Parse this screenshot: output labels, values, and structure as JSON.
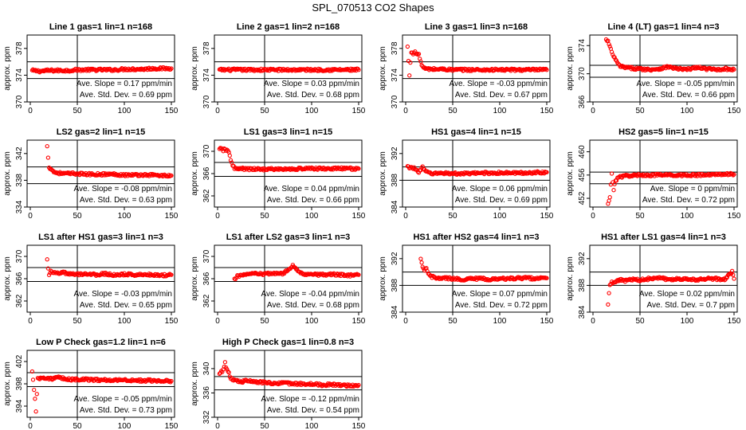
{
  "figure": {
    "title": "SPL_070513  CO2 Shapes"
  },
  "chart_data": [
    {
      "type": "scatter",
      "title": "Line 1 gas=1 lin=1 n=168",
      "ylabel": "approx. ppm",
      "xlim": [
        0,
        150
      ],
      "ylim": [
        370,
        380
      ],
      "xticks": [
        0,
        50,
        100,
        150
      ],
      "yticks": [
        370,
        374,
        378
      ],
      "vline": 50,
      "hlines": [
        373.5,
        376
      ],
      "stats": {
        "slope": "Ave. Slope =  0.17  ppm/min",
        "sd": "Ave. Std. Dev. =  0.69  ppm"
      },
      "series": [
        {
          "x": [
            2,
            10,
            20,
            30,
            40,
            50,
            60,
            70,
            80,
            90,
            100,
            110,
            120,
            130,
            140,
            150
          ],
          "y": [
            374.7,
            374.6,
            374.7,
            374.7,
            374.7,
            374.8,
            374.8,
            374.8,
            374.8,
            374.8,
            374.9,
            374.9,
            374.9,
            375.0,
            375.0,
            375.0
          ]
        }
      ]
    },
    {
      "type": "scatter",
      "title": "Line 2 gas=1 lin=2 n=168",
      "ylabel": "approx. ppm",
      "xlim": [
        0,
        150
      ],
      "ylim": [
        370,
        380
      ],
      "xticks": [
        0,
        50,
        100,
        150
      ],
      "yticks": [
        370,
        374,
        378
      ],
      "vline": 50,
      "hlines": [
        373.5,
        376
      ],
      "stats": {
        "slope": "Ave. Slope =  0.03  ppm/min",
        "sd": "Ave. Std. Dev. =  0.68  ppm"
      },
      "series": [
        {
          "x": [
            2,
            10,
            20,
            30,
            40,
            50,
            60,
            70,
            80,
            90,
            100,
            110,
            120,
            130,
            140,
            150
          ],
          "y": [
            374.8,
            374.8,
            374.8,
            374.8,
            374.8,
            374.8,
            374.8,
            374.8,
            374.8,
            374.8,
            374.8,
            374.8,
            374.8,
            374.8,
            374.8,
            374.8
          ]
        }
      ]
    },
    {
      "type": "scatter",
      "title": "Line 3 gas=1 lin=3 n=168",
      "ylabel": "approx. ppm",
      "xlim": [
        0,
        150
      ],
      "ylim": [
        370,
        380
      ],
      "xticks": [
        0,
        50,
        100,
        150
      ],
      "yticks": [
        370,
        374,
        378
      ],
      "vline": 50,
      "hlines": [
        373.5,
        376
      ],
      "stats": {
        "slope": "Ave. Slope =  -0.03  ppm/min",
        "sd": "Ave. Std. Dev. =  0.67  ppm"
      },
      "series": [
        {
          "x": [
            2,
            4,
            6,
            8,
            10,
            12,
            14,
            16,
            18,
            20,
            25,
            30,
            40,
            50,
            60,
            70,
            80,
            90,
            100,
            110,
            120,
            130,
            140,
            150
          ],
          "y": [
            378.2,
            374.0,
            377.5,
            377.3,
            377.4,
            377.2,
            377.0,
            376.0,
            375.3,
            375.0,
            374.9,
            374.9,
            374.9,
            374.8,
            374.8,
            374.8,
            374.8,
            374.8,
            374.8,
            374.8,
            374.8,
            374.8,
            374.8,
            374.8
          ]
        }
      ]
    },
    {
      "type": "scatter",
      "title": "Line 4 (LT) gas=1 lin=4 n=3",
      "ylabel": "approx. ppm",
      "xlim": [
        0,
        150
      ],
      "ylim": [
        366,
        375.5
      ],
      "xticks": [
        0,
        50,
        100,
        150
      ],
      "yticks": [
        366,
        370,
        374
      ],
      "vline": 50,
      "hlines": [
        369.5,
        371.2
      ],
      "stats": {
        "slope": "Ave. Slope =  -0.05  ppm/min",
        "sd": "Ave. Std. Dev. =  0.66  ppm"
      },
      "series": [
        {
          "x": [
            14,
            16,
            18,
            20,
            22,
            24,
            26,
            28,
            30,
            35,
            40,
            50,
            60,
            70,
            80,
            90,
            100,
            110,
            120,
            130,
            140,
            150
          ],
          "y": [
            374.8,
            374.6,
            373.8,
            373.0,
            372.5,
            372.0,
            371.5,
            371.2,
            371.0,
            370.9,
            370.8,
            370.7,
            370.6,
            370.7,
            371.0,
            370.7,
            370.6,
            370.9,
            370.7,
            370.6,
            370.7,
            370.6
          ]
        }
      ]
    },
    {
      "type": "scatter",
      "title": "LS2 gas=2 lin=1 n=15",
      "ylabel": "approx. ppm",
      "xlim": [
        0,
        150
      ],
      "ylim": [
        334,
        344
      ],
      "xticks": [
        0,
        50,
        100,
        150
      ],
      "yticks": [
        334,
        338,
        342
      ],
      "vline": 50,
      "hlines": [
        337.5,
        340
      ],
      "stats": {
        "slope": "Ave. Slope =  -0.08  ppm/min",
        "sd": "Ave. Std. Dev. =  0.63  ppm"
      },
      "series": [
        {
          "x": [
            18,
            20,
            22,
            24,
            26,
            30,
            35,
            40,
            50,
            60,
            70,
            80,
            90,
            100,
            110,
            120,
            130,
            140,
            150
          ],
          "y": [
            343.0,
            340.0,
            339.7,
            339.4,
            339.2,
            339.1,
            339.0,
            339.0,
            339.0,
            338.9,
            338.9,
            338.9,
            338.9,
            338.8,
            338.8,
            338.8,
            338.8,
            338.7,
            338.7
          ]
        }
      ]
    },
    {
      "type": "scatter",
      "title": "LS1 gas=3 lin=1 n=15",
      "ylabel": "approx. ppm",
      "xlim": [
        0,
        150
      ],
      "ylim": [
        360,
        372
      ],
      "xticks": [
        0,
        50,
        100,
        150
      ],
      "yticks": [
        362,
        366,
        370
      ],
      "vline": 50,
      "hlines": [
        365.5,
        368
      ],
      "stats": {
        "slope": "Ave. Slope =  0.04  ppm/min",
        "sd": "Ave. Std. Dev. =  0.66  ppm"
      },
      "series": [
        {
          "x": [
            2,
            4,
            6,
            8,
            10,
            12,
            14,
            16,
            18,
            20,
            25,
            30,
            40,
            50,
            60,
            70,
            80,
            90,
            100,
            110,
            120,
            130,
            140,
            150
          ],
          "y": [
            370.3,
            370.5,
            370.2,
            370.4,
            370.1,
            369.8,
            368.5,
            367.6,
            367.0,
            366.8,
            366.9,
            366.8,
            366.8,
            366.8,
            366.8,
            366.8,
            366.8,
            366.9,
            366.9,
            366.9,
            366.9,
            366.9,
            366.9,
            366.9
          ]
        }
      ]
    },
    {
      "type": "scatter",
      "title": "HS1 gas=4 lin=1 n=15",
      "ylabel": "approx. ppm",
      "xlim": [
        0,
        150
      ],
      "ylim": [
        384,
        394
      ],
      "xticks": [
        0,
        50,
        100,
        150
      ],
      "yticks": [
        384,
        388,
        392
      ],
      "vline": 50,
      "hlines": [
        388,
        390
      ],
      "stats": {
        "slope": "Ave. Slope =  0.06  ppm/min",
        "sd": "Ave. Std. Dev. =  0.69  ppm"
      },
      "series": [
        {
          "x": [
            2,
            6,
            10,
            14,
            18,
            22,
            26,
            30,
            40,
            50,
            60,
            70,
            80,
            90,
            100,
            110,
            120,
            130,
            140,
            150
          ],
          "y": [
            390.0,
            389.9,
            389.7,
            389.3,
            389.9,
            389.2,
            389.1,
            389.0,
            389.1,
            389.0,
            389.0,
            389.0,
            389.1,
            389.1,
            389.1,
            389.1,
            389.1,
            389.1,
            389.2,
            389.2
          ]
        }
      ]
    },
    {
      "type": "scatter",
      "title": "HS2 gas=5 lin=1 n=15",
      "ylabel": "approx. ppm",
      "xlim": [
        0,
        150
      ],
      "ylim": [
        450.5,
        462
      ],
      "xticks": [
        0,
        50,
        100,
        150
      ],
      "yticks": [
        452,
        456,
        460
      ],
      "vline": 50,
      "hlines": [
        454.5,
        456.5
      ],
      "stats": {
        "slope": "Ave. Slope =  0  ppm/min",
        "sd": "Ave. Std. Dev. =  0.72  ppm"
      },
      "series": [
        {
          "x": [
            16,
            18,
            20,
            22,
            24,
            26,
            30,
            35,
            40,
            50,
            60,
            70,
            80,
            90,
            100,
            110,
            120,
            130,
            140,
            150
          ],
          "y": [
            450.9,
            452.2,
            456.3,
            453.6,
            455.0,
            455.5,
            455.7,
            455.9,
            455.9,
            456.0,
            456.0,
            456.0,
            456.0,
            456.0,
            456.0,
            456.0,
            456.0,
            456.1,
            456.2,
            456.1
          ]
        }
      ]
    },
    {
      "type": "scatter",
      "title": "LS1 after HS1 gas=3 lin=1 n=3",
      "ylabel": "approx. ppm",
      "xlim": [
        0,
        150
      ],
      "ylim": [
        360,
        372
      ],
      "xticks": [
        0,
        50,
        100,
        150
      ],
      "yticks": [
        362,
        366,
        370
      ],
      "vline": 50,
      "hlines": [
        365.5,
        368
      ],
      "stats": {
        "slope": "Ave. Slope =  -0.03  ppm/min",
        "sd": "Ave. Std. Dev. =  0.65  ppm"
      },
      "series": [
        {
          "x": [
            18,
            20,
            22,
            24,
            26,
            30,
            35,
            40,
            50,
            60,
            70,
            80,
            90,
            100,
            110,
            120,
            130,
            140,
            150
          ],
          "y": [
            369.3,
            366.5,
            367.6,
            366.9,
            367.0,
            366.9,
            367.2,
            366.8,
            366.8,
            366.9,
            366.7,
            366.9,
            366.6,
            366.8,
            366.7,
            366.8,
            366.7,
            366.6,
            366.7
          ]
        }
      ]
    },
    {
      "type": "scatter",
      "title": "LS1 after LS2 gas=3 lin=1 n=3",
      "ylabel": "approx. ppm",
      "xlim": [
        0,
        150
      ],
      "ylim": [
        360,
        372
      ],
      "xticks": [
        0,
        50,
        100,
        150
      ],
      "yticks": [
        362,
        366,
        370
      ],
      "vline": 50,
      "hlines": [
        365.5,
        368
      ],
      "stats": {
        "slope": "Ave. Slope =  -0.04  ppm/min",
        "sd": "Ave. Std. Dev. =  0.68  ppm"
      },
      "series": [
        {
          "x": [
            18,
            20,
            22,
            26,
            30,
            35,
            40,
            50,
            60,
            70,
            80,
            90,
            100,
            110,
            120,
            130,
            140,
            150
          ],
          "y": [
            365.8,
            366.3,
            366.5,
            366.7,
            366.8,
            366.8,
            366.9,
            366.8,
            367.0,
            366.9,
            368.3,
            366.9,
            366.8,
            366.7,
            366.8,
            366.7,
            366.6,
            366.7
          ]
        }
      ]
    },
    {
      "type": "scatter",
      "title": "HS1 after HS2 gas=4 lin=1 n=3",
      "ylabel": "approx. ppm",
      "xlim": [
        0,
        150
      ],
      "ylim": [
        384,
        394
      ],
      "xticks": [
        0,
        50,
        100,
        150
      ],
      "yticks": [
        384,
        388,
        392
      ],
      "vline": 50,
      "hlines": [
        388,
        390
      ],
      "stats": {
        "slope": "Ave. Slope =  0.07  ppm/min",
        "sd": "Ave. Std. Dev. =  0.72  ppm"
      },
      "series": [
        {
          "x": [
            16,
            18,
            20,
            22,
            24,
            26,
            30,
            35,
            40,
            50,
            60,
            70,
            80,
            90,
            100,
            110,
            120,
            130,
            140,
            150
          ],
          "y": [
            391.8,
            390.7,
            390.3,
            390.6,
            389.7,
            389.4,
            389.2,
            389.0,
            389.1,
            389.0,
            388.9,
            389.0,
            389.0,
            388.9,
            389.0,
            389.0,
            389.1,
            389.1,
            389.0,
            389.1
          ]
        }
      ]
    },
    {
      "type": "scatter",
      "title": "HS1 after LS1 gas=4 lin=1 n=3",
      "ylabel": "approx. ppm",
      "xlim": [
        0,
        150
      ],
      "ylim": [
        384,
        394
      ],
      "xticks": [
        0,
        50,
        100,
        150
      ],
      "yticks": [
        384,
        388,
        392
      ],
      "vline": 50,
      "hlines": [
        388,
        390
      ],
      "stats": {
        "slope": "Ave. Slope =  0.02  ppm/min",
        "sd": "Ave. Std. Dev. =  0.7  ppm"
      },
      "series": [
        {
          "x": [
            16,
            18,
            20,
            22,
            25,
            30,
            35,
            40,
            50,
            60,
            70,
            80,
            90,
            100,
            110,
            120,
            130,
            140,
            148,
            150
          ],
          "y": [
            385.3,
            388.2,
            388.4,
            388.5,
            388.7,
            388.8,
            388.7,
            388.9,
            388.8,
            389.0,
            389.2,
            388.9,
            389.0,
            388.9,
            388.8,
            389.0,
            389.0,
            388.9,
            390.0,
            389.0
          ]
        }
      ]
    },
    {
      "type": "scatter",
      "title": "Low P Check gas=1.2 lin=1 n=6",
      "ylabel": "approx. ppm",
      "xlim": [
        0,
        150
      ],
      "ylim": [
        392,
        404
      ],
      "xticks": [
        0,
        50,
        100,
        150
      ],
      "yticks": [
        394,
        398,
        402
      ],
      "vline": 50,
      "hlines": [
        397.5,
        400
      ],
      "stats": {
        "slope": "Ave. Slope =  -0.05  ppm/min",
        "sd": "Ave. Std. Dev. =  0.73  ppm"
      },
      "series": [
        {
          "x": [
            2,
            3,
            4,
            5,
            6,
            8,
            10,
            15,
            20,
            25,
            30,
            40,
            50,
            60,
            70,
            80,
            90,
            100,
            110,
            120,
            130,
            140,
            150
          ],
          "y": [
            400.4,
            398.7,
            396.9,
            395.2,
            393.0,
            399.2,
            398.9,
            399.1,
            399.0,
            398.9,
            399.1,
            398.8,
            398.8,
            398.8,
            398.7,
            398.7,
            398.7,
            398.7,
            398.6,
            398.6,
            398.6,
            398.6,
            398.5
          ]
        }
      ]
    },
    {
      "type": "scatter",
      "title": "High P Check gas=1 lin=0.8 n=3",
      "ylabel": "approx. ppm",
      "xlim": [
        0,
        150
      ],
      "ylim": [
        332,
        343
      ],
      "xticks": [
        0,
        50,
        100,
        150
      ],
      "yticks": [
        332,
        336,
        340
      ],
      "vline": 50,
      "hlines": [
        336.5,
        338.7
      ],
      "stats": {
        "slope": "Ave. Slope =  -0.12  ppm/min",
        "sd": "Ave. Std. Dev. =  0.54  ppm"
      },
      "series": [
        {
          "x": [
            2,
            5,
            8,
            10,
            12,
            14,
            16,
            18,
            20,
            25,
            30,
            40,
            50,
            60,
            70,
            80,
            90,
            100,
            110,
            120,
            130,
            140,
            150
          ],
          "y": [
            339.3,
            339.5,
            340.9,
            339.8,
            339.3,
            338.4,
            338.2,
            338.0,
            338.1,
            337.8,
            338.0,
            337.8,
            337.7,
            337.6,
            337.6,
            337.5,
            337.5,
            337.5,
            337.3,
            337.4,
            337.3,
            337.2,
            337.3
          ]
        }
      ]
    }
  ],
  "colors": {
    "points": "#ff0000",
    "point_edge": "#cc0000",
    "axes": "#000000"
  }
}
